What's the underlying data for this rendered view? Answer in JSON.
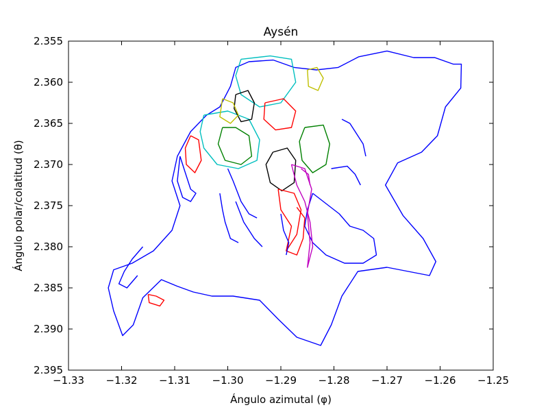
{
  "chart_data": {
    "type": "line",
    "title": "Aysén",
    "xlabel": "Ángulo azimutal (φ)",
    "ylabel": "Ángulo polar/colatitud (θ)",
    "xlim": [
      -1.33,
      -1.25
    ],
    "ylim": [
      2.395,
      2.355
    ],
    "y_inverted": true,
    "grid": false,
    "xticks": [
      -1.33,
      -1.32,
      -1.31,
      -1.3,
      -1.29,
      -1.28,
      -1.27,
      -1.26,
      -1.25
    ],
    "xtick_labels": [
      "−1.33",
      "−1.32",
      "−1.31",
      "−1.30",
      "−1.29",
      "−1.28",
      "−1.27",
      "−1.26",
      "−1.25"
    ],
    "yticks": [
      2.355,
      2.36,
      2.365,
      2.37,
      2.375,
      2.38,
      2.385,
      2.39,
      2.395
    ],
    "ytick_labels": [
      "2.355",
      "2.360",
      "2.365",
      "2.370",
      "2.375",
      "2.380",
      "2.385",
      "2.390",
      "2.395"
    ],
    "series": [
      {
        "color": "#0000ff",
        "points": [
          [
            -1.2914,
            2.3573
          ],
          [
            -1.2875,
            2.3582
          ],
          [
            -1.2833,
            2.3585
          ],
          [
            -1.2792,
            2.3582
          ],
          [
            -1.2753,
            2.3569
          ],
          [
            -1.27,
            2.3562
          ],
          [
            -1.265,
            2.357
          ],
          [
            -1.261,
            2.357
          ],
          [
            -1.2575,
            2.3578
          ],
          [
            -1.256,
            2.3578
          ],
          [
            -1.2561,
            2.3607
          ],
          [
            -1.259,
            2.363
          ],
          [
            -1.2605,
            2.3665
          ],
          [
            -1.2635,
            2.3685
          ],
          [
            -1.268,
            2.3698
          ],
          [
            -1.2703,
            2.3725
          ],
          [
            -1.267,
            2.3762
          ],
          [
            -1.2632,
            2.379
          ],
          [
            -1.2608,
            2.3818
          ],
          [
            -1.262,
            2.3835
          ],
          [
            -1.27,
            2.3825
          ],
          [
            -1.2755,
            2.383
          ],
          [
            -1.2785,
            2.386
          ],
          [
            -1.2805,
            2.3895
          ],
          [
            -1.2825,
            2.392
          ],
          [
            -1.287,
            2.391
          ],
          [
            -1.2905,
            2.3888
          ],
          [
            -1.294,
            2.3865
          ],
          [
            -1.299,
            2.386
          ],
          [
            -1.303,
            2.386
          ],
          [
            -1.3065,
            2.3855
          ],
          [
            -1.3095,
            2.3848
          ],
          [
            -1.3125,
            2.384
          ],
          [
            -1.316,
            2.3862
          ],
          [
            -1.3178,
            2.3895
          ],
          [
            -1.3198,
            2.3908
          ],
          [
            -1.3215,
            2.3878
          ],
          [
            -1.3225,
            2.385
          ],
          [
            -1.3215,
            2.3828
          ],
          [
            -1.318,
            2.382
          ],
          [
            -1.314,
            2.3805
          ],
          [
            -1.3105,
            2.378
          ],
          [
            -1.309,
            2.375
          ],
          [
            -1.3105,
            2.372
          ],
          [
            -1.3095,
            2.369
          ],
          [
            -1.307,
            2.366
          ],
          [
            -1.304,
            2.364
          ],
          [
            -1.3015,
            2.363
          ],
          [
            -1.2995,
            2.3605
          ],
          [
            -1.2985,
            2.3582
          ],
          [
            -1.296,
            2.3575
          ],
          [
            -1.2914,
            2.3573
          ]
        ]
      },
      {
        "color": "#0000ff",
        "points": [
          [
            -1.284,
            2.3735
          ],
          [
            -1.282,
            2.3745
          ],
          [
            -1.279,
            2.376
          ],
          [
            -1.277,
            2.3775
          ],
          [
            -1.2745,
            2.378
          ],
          [
            -1.2725,
            2.379
          ],
          [
            -1.272,
            2.381
          ],
          [
            -1.2745,
            2.382
          ],
          [
            -1.278,
            2.382
          ],
          [
            -1.2815,
            2.381
          ],
          [
            -1.284,
            2.3795
          ],
          [
            -1.2855,
            2.3775
          ],
          [
            -1.285,
            2.3755
          ],
          [
            -1.284,
            2.3735
          ]
        ]
      },
      {
        "color": "#00bfbf",
        "points": [
          [
            -1.2975,
            2.3572
          ],
          [
            -1.292,
            2.3568
          ],
          [
            -1.288,
            2.3572
          ],
          [
            -1.2872,
            2.36
          ],
          [
            -1.29,
            2.3625
          ],
          [
            -1.294,
            2.363
          ],
          [
            -1.2975,
            2.3615
          ],
          [
            -1.2985,
            2.3592
          ],
          [
            -1.2975,
            2.3572
          ]
        ]
      },
      {
        "color": "#00bfbf",
        "points": [
          [
            -1.3045,
            2.364
          ],
          [
            -1.3,
            2.3635
          ],
          [
            -1.296,
            2.3645
          ],
          [
            -1.294,
            2.367
          ],
          [
            -1.2945,
            2.3695
          ],
          [
            -1.298,
            2.3705
          ],
          [
            -1.302,
            2.37
          ],
          [
            -1.3045,
            2.368
          ],
          [
            -1.3052,
            2.366
          ],
          [
            -1.3045,
            2.364
          ]
        ]
      },
      {
        "color": "#008000",
        "points": [
          [
            -1.301,
            2.3655
          ],
          [
            -1.2985,
            2.3655
          ],
          [
            -1.296,
            2.3665
          ],
          [
            -1.2955,
            2.369
          ],
          [
            -1.2975,
            2.37
          ],
          [
            -1.3005,
            2.3695
          ],
          [
            -1.3018,
            2.3675
          ],
          [
            -1.301,
            2.3655
          ]
        ]
      },
      {
        "color": "#008000",
        "points": [
          [
            -1.2855,
            2.3655
          ],
          [
            -1.282,
            2.3652
          ],
          [
            -1.2808,
            2.3675
          ],
          [
            -1.2815,
            2.37
          ],
          [
            -1.284,
            2.371
          ],
          [
            -1.286,
            2.3695
          ],
          [
            -1.2865,
            2.3672
          ],
          [
            -1.2855,
            2.3655
          ]
        ]
      },
      {
        "color": "#000000",
        "points": [
          [
            -1.2915,
            2.3685
          ],
          [
            -1.2888,
            2.368
          ],
          [
            -1.2872,
            2.3695
          ],
          [
            -1.2875,
            2.3722
          ],
          [
            -1.2898,
            2.3732
          ],
          [
            -1.292,
            2.3722
          ],
          [
            -1.2928,
            2.37
          ],
          [
            -1.2915,
            2.3685
          ]
        ]
      },
      {
        "color": "#000000",
        "points": [
          [
            -1.2985,
            2.3615
          ],
          [
            -1.2962,
            2.361
          ],
          [
            -1.295,
            2.3625
          ],
          [
            -1.2955,
            2.3645
          ],
          [
            -1.2975,
            2.3648
          ],
          [
            -1.2988,
            2.3632
          ],
          [
            -1.2985,
            2.3615
          ]
        ]
      },
      {
        "color": "#ff0000",
        "points": [
          [
            -1.293,
            2.3625
          ],
          [
            -1.2895,
            2.362
          ],
          [
            -1.2872,
            2.3635
          ],
          [
            -1.288,
            2.3655
          ],
          [
            -1.291,
            2.3658
          ],
          [
            -1.2932,
            2.3645
          ],
          [
            -1.293,
            2.3625
          ]
        ]
      },
      {
        "color": "#ff0000",
        "points": [
          [
            -1.307,
            2.3665
          ],
          [
            -1.3055,
            2.367
          ],
          [
            -1.305,
            2.3695
          ],
          [
            -1.3062,
            2.371
          ],
          [
            -1.3078,
            2.37
          ],
          [
            -1.308,
            2.368
          ],
          [
            -1.307,
            2.3665
          ]
        ]
      },
      {
        "color": "#ff0000",
        "points": [
          [
            -1.2905,
            2.373
          ],
          [
            -1.2875,
            2.3735
          ],
          [
            -1.2862,
            2.3755
          ],
          [
            -1.287,
            2.3785
          ],
          [
            -1.289,
            2.3805
          ],
          [
            -1.288,
            2.3775
          ],
          [
            -1.29,
            2.3755
          ],
          [
            -1.2905,
            2.373
          ]
        ]
      },
      {
        "color": "#ff0000",
        "points": [
          [
            -1.287,
            2.3752
          ],
          [
            -1.2855,
            2.3765
          ],
          [
            -1.2858,
            2.379
          ],
          [
            -1.287,
            2.381
          ],
          [
            -1.289,
            2.3805
          ]
        ]
      },
      {
        "color": "#ff0000",
        "points": [
          [
            -1.315,
            2.3858
          ],
          [
            -1.3135,
            2.386
          ],
          [
            -1.312,
            2.3865
          ],
          [
            -1.3128,
            2.3872
          ],
          [
            -1.3148,
            2.3868
          ],
          [
            -1.315,
            2.3858
          ]
        ]
      },
      {
        "color": "#bf00bf",
        "points": [
          [
            -1.288,
            2.37
          ],
          [
            -1.2855,
            2.3705
          ],
          [
            -1.2842,
            2.373
          ],
          [
            -1.285,
            2.376
          ],
          [
            -1.2845,
            2.3795
          ],
          [
            -1.285,
            2.3825
          ],
          [
            -1.284,
            2.38
          ],
          [
            -1.2845,
            2.377
          ],
          [
            -1.2855,
            2.3745
          ],
          [
            -1.287,
            2.3725
          ],
          [
            -1.288,
            2.37
          ]
        ]
      },
      {
        "color": "#bf00bf",
        "points": [
          [
            -1.2862,
            2.3705
          ],
          [
            -1.2848,
            2.3712
          ],
          [
            -1.2845,
            2.3725
          ]
        ]
      },
      {
        "color": "#bfbf00",
        "points": [
          [
            -1.285,
            2.3585
          ],
          [
            -1.2832,
            2.3582
          ],
          [
            -1.282,
            2.3595
          ],
          [
            -1.283,
            2.361
          ],
          [
            -1.2848,
            2.3605
          ],
          [
            -1.285,
            2.3585
          ]
        ]
      },
      {
        "color": "#bfbf00",
        "points": [
          [
            -1.301,
            2.362
          ],
          [
            -1.299,
            2.3625
          ],
          [
            -1.298,
            2.364
          ],
          [
            -1.2995,
            2.365
          ],
          [
            -1.3015,
            2.3642
          ],
          [
            -1.301,
            2.362
          ]
        ]
      },
      {
        "color": "#0000ff",
        "points": [
          [
            -1.309,
            2.369
          ],
          [
            -1.308,
            2.371
          ],
          [
            -1.307,
            2.373
          ],
          [
            -1.306,
            2.3735
          ],
          [
            -1.307,
            2.3745
          ],
          [
            -1.3085,
            2.374
          ],
          [
            -1.3095,
            2.372
          ],
          [
            -1.309,
            2.369
          ]
        ]
      },
      {
        "color": "#0000ff",
        "points": [
          [
            -1.3,
            2.3705
          ],
          [
            -1.299,
            2.372
          ],
          [
            -1.2975,
            2.3745
          ],
          [
            -1.296,
            2.376
          ],
          [
            -1.2945,
            2.3765
          ]
        ]
      },
      {
        "color": "#0000ff",
        "points": [
          [
            -1.2985,
            2.3745
          ],
          [
            -1.297,
            2.377
          ],
          [
            -1.295,
            2.379
          ],
          [
            -1.2935,
            2.38
          ]
        ]
      },
      {
        "color": "#0000ff",
        "points": [
          [
            -1.3015,
            2.3735
          ],
          [
            -1.301,
            2.3755
          ],
          [
            -1.3005,
            2.377
          ],
          [
            -1.2995,
            2.379
          ],
          [
            -1.298,
            2.3795
          ]
        ]
      },
      {
        "color": "#0000ff",
        "points": [
          [
            -1.29,
            2.376
          ],
          [
            -1.2895,
            2.378
          ],
          [
            -1.2885,
            2.3795
          ],
          [
            -1.289,
            2.381
          ]
        ]
      },
      {
        "color": "#0000ff",
        "points": [
          [
            -1.2805,
            2.3705
          ],
          [
            -1.2775,
            2.3702
          ],
          [
            -1.276,
            2.3712
          ],
          [
            -1.275,
            2.3725
          ]
        ]
      },
      {
        "color": "#0000ff",
        "points": [
          [
            -1.2785,
            2.3645
          ],
          [
            -1.277,
            2.365
          ],
          [
            -1.2755,
            2.3665
          ],
          [
            -1.2745,
            2.3675
          ],
          [
            -1.274,
            2.369
          ]
        ]
      },
      {
        "color": "#0000ff",
        "points": [
          [
            -1.316,
            2.38
          ],
          [
            -1.318,
            2.3815
          ],
          [
            -1.3195,
            2.383
          ],
          [
            -1.3205,
            2.3845
          ],
          [
            -1.319,
            2.385
          ],
          [
            -1.317,
            2.3835
          ]
        ]
      }
    ]
  }
}
